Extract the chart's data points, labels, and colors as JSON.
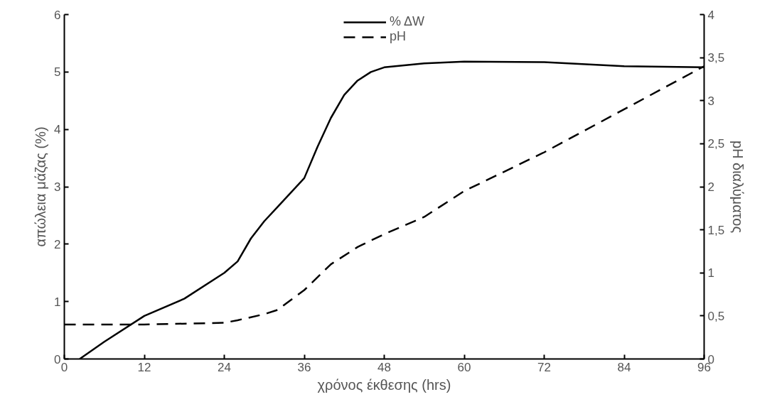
{
  "chart_data": {
    "type": "line",
    "xlabel": "χρόνος έκθεσης (hrs)",
    "ylabel": "απώλεια μάζας (%)",
    "y2label": "pH διαλύματος",
    "xlim": [
      0,
      96
    ],
    "xticks": [
      0,
      12,
      24,
      36,
      48,
      60,
      72,
      84,
      96
    ],
    "ylim": [
      0,
      6
    ],
    "yticks": [
      0,
      1,
      2,
      3,
      4,
      5,
      6
    ],
    "y2lim": [
      0,
      4
    ],
    "y2ticks": [
      0,
      {
        "value": 0.5,
        "label": "0,5"
      },
      1,
      {
        "value": 1.5,
        "label": "1,5"
      },
      2,
      {
        "value": 2.5,
        "label": "2,5"
      },
      3,
      {
        "value": 3.5,
        "label": "3,5"
      },
      4
    ],
    "grid": false,
    "legend": "top",
    "marker": "none",
    "series": [
      {
        "name": "% ΔW",
        "color": "#000000",
        "line_style": "solid",
        "x": [
          2.3,
          6,
          12,
          18,
          24,
          26,
          28,
          30,
          32,
          34,
          36,
          38,
          40,
          42,
          44,
          46,
          48,
          54,
          60,
          72,
          84,
          96
        ],
        "values": [
          0,
          0.3,
          0.75,
          1.05,
          1.5,
          1.7,
          2.1,
          2.4,
          2.65,
          2.9,
          3.15,
          3.7,
          4.2,
          4.6,
          4.85,
          5.0,
          5.08,
          5.15,
          5.18,
          5.17,
          5.1,
          5.08
        ]
      },
      {
        "name": "pH",
        "color": "#000000",
        "line_style": "dashed",
        "axis": "y2",
        "x": [
          0,
          12,
          24,
          26,
          30,
          32,
          36,
          40,
          44,
          48,
          54,
          60,
          72,
          84,
          96
        ],
        "values": [
          0.4,
          0.4,
          0.42,
          0.45,
          0.52,
          0.57,
          0.8,
          1.1,
          1.3,
          1.45,
          1.65,
          1.95,
          2.4,
          2.9,
          3.4
        ]
      }
    ]
  }
}
